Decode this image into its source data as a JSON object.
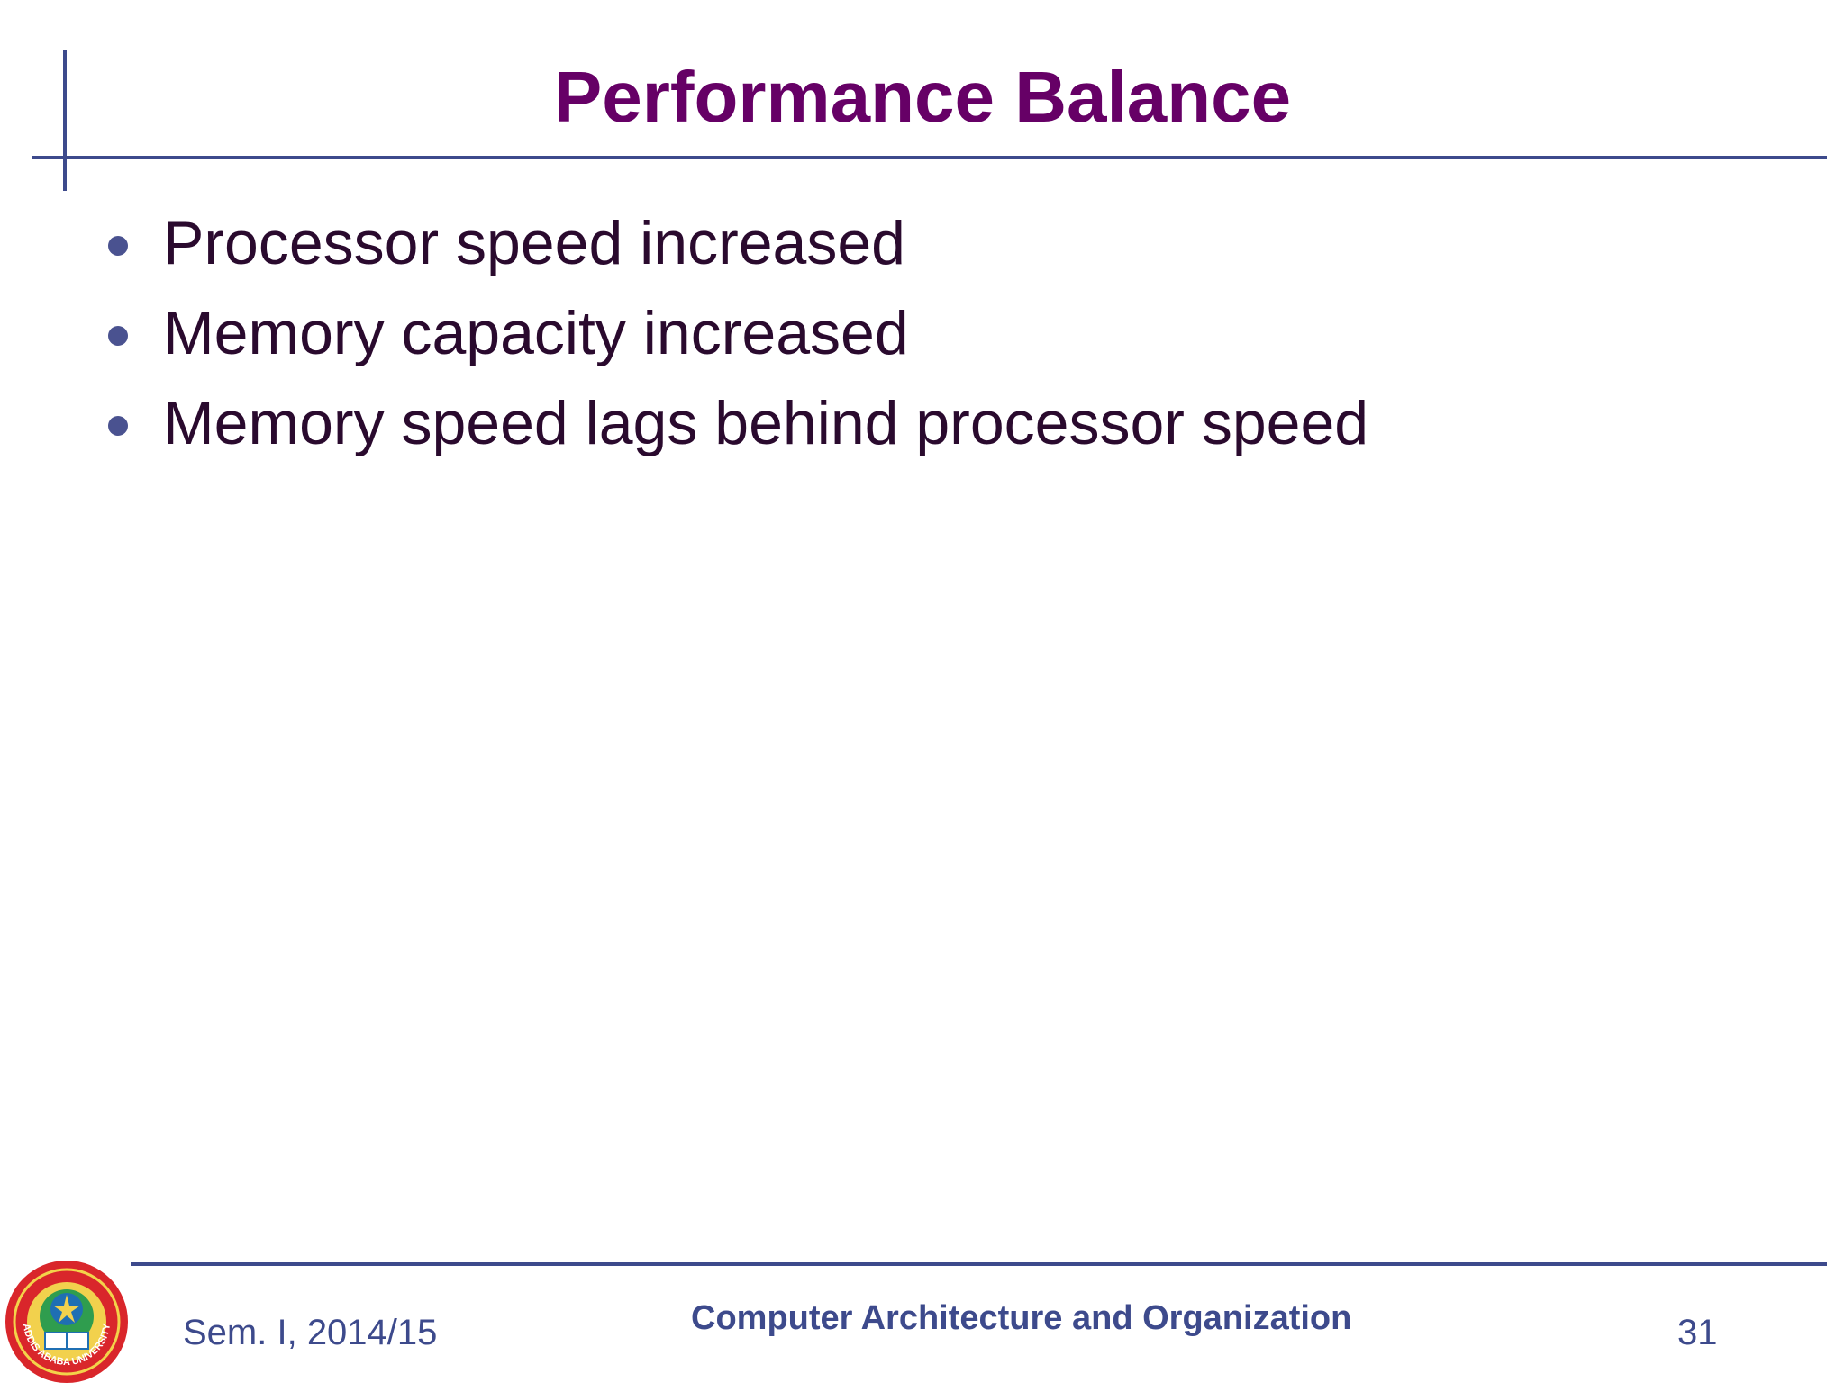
{
  "slide": {
    "title": "Performance Balance",
    "bullets": [
      "Processor speed increased",
      "Memory capacity increased",
      "Memory speed lags behind processor speed"
    ]
  },
  "footer": {
    "semester": "Sem. I, 2014/15",
    "course": "Computer Architecture and Organization",
    "page_number": "31",
    "logo_text": "ADDIS ABABA UNIVERSITY"
  },
  "colors": {
    "title": "#660066",
    "accent": "#3d4a8c",
    "body_text": "#2a0a2e"
  },
  "icons": {
    "bullet": "bullet-dot-icon",
    "logo": "university-seal-logo"
  }
}
